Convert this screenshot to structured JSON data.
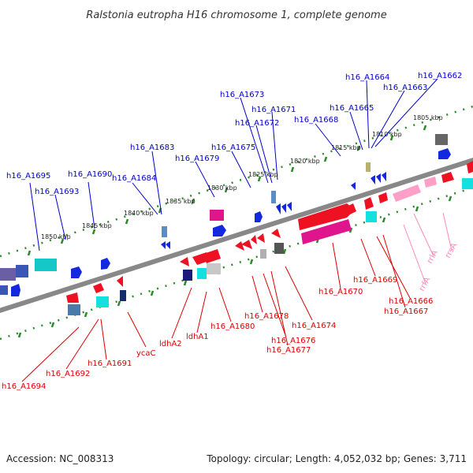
{
  "title": "Ralstonia eutropha H16 chromosome 1, complete genome",
  "footer": {
    "accession": "Accession: NC_008313",
    "topology": "Topology: circular; Length: 4,052,032 bp; Genes: 3,711"
  },
  "colors": {
    "top_labels": "#0000cc",
    "bottom_labels": "#dd0000",
    "rrna_labels": "#ff88bb",
    "backbone": "#808080",
    "ticks": "#008800"
  },
  "scale": {
    "kbp_labels": [
      "1850 kbp",
      "1845 kbp",
      "1840 kbp",
      "1835 kbp",
      "1830 kbp",
      "1825 kbp",
      "1820 kbp",
      "1815 kbp",
      "1810 kbp",
      "1805 kbp"
    ]
  },
  "genes_top": [
    "h16_A1695",
    "h16_A1693",
    "h16_A1690",
    "h16_A1684",
    "h16_A1683",
    "h16_A1679",
    "h16_A1675",
    "h16_A1673",
    "h16_A1672",
    "h16_A1671",
    "h16_A1668",
    "h16_A1665",
    "h16_A1664",
    "h16_A1663",
    "h16_A1662"
  ],
  "genes_bottom": [
    "h16_A1694",
    "h16_A1692",
    "h16_A1691",
    "ycaC",
    "ldhA2",
    "ldhA1",
    "h16_A1680",
    "h16_A1678",
    "h16_A1676",
    "h16_A1677",
    "h16_A1674",
    "h16_A1670",
    "h16_A1669",
    "h16_A1666",
    "h16_A1667"
  ],
  "genes_rrna": [
    "rrsA",
    "rrlA",
    "rrfA"
  ]
}
